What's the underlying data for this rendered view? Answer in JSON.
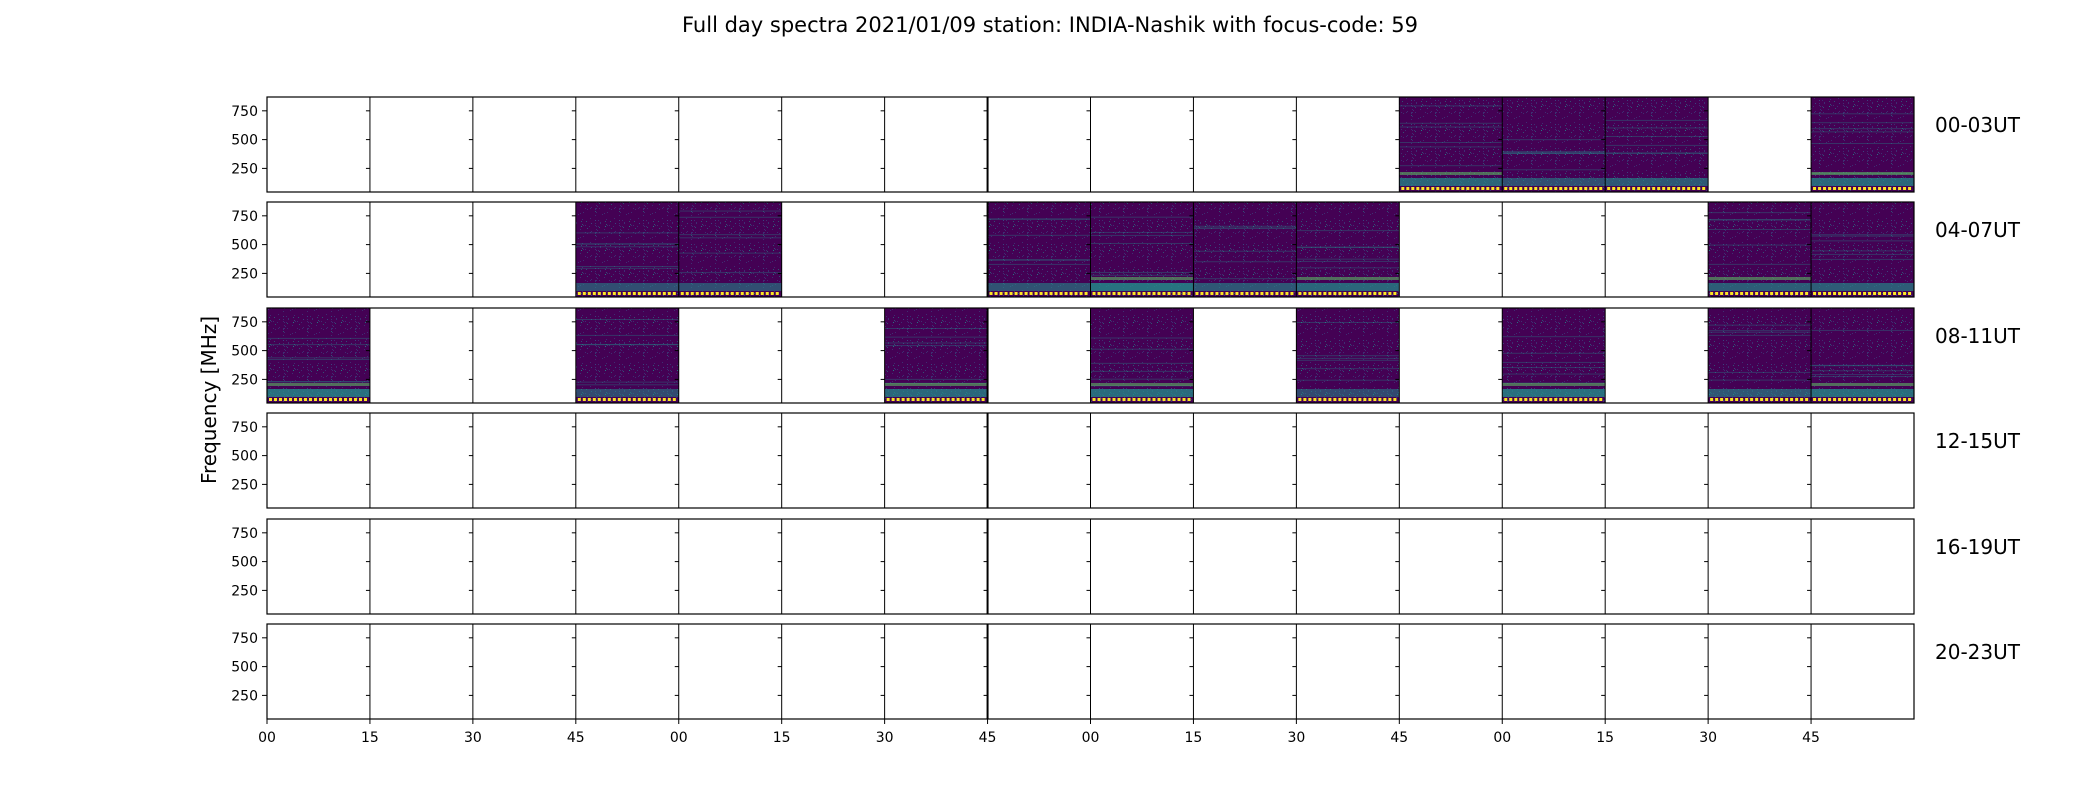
{
  "chart_data": {
    "type": "heatmap",
    "title": "Full day spectra 2021/01/09 station: INDIA-Nashik with focus-code: 59",
    "xlabel": "",
    "ylabel": "Frequency [MHz]",
    "ylim": [
      45,
      870
    ],
    "yticks": [
      "750",
      "500",
      "250"
    ],
    "ytick_values": [
      750,
      500,
      250
    ],
    "xtick_labels": [
      "00",
      "15",
      "30",
      "45",
      "00",
      "15",
      "30",
      "45",
      "00",
      "15",
      "30",
      "45",
      "00",
      "15",
      "30",
      "45"
    ],
    "rows": [
      {
        "label": "00-03UT",
        "filled": [
          0,
          0,
          0,
          0,
          0,
          0,
          0,
          0,
          0,
          0,
          0,
          1,
          1,
          1,
          0,
          1
        ]
      },
      {
        "label": "04-07UT",
        "filled": [
          0,
          0,
          0,
          1,
          1,
          0,
          0,
          1,
          1,
          1,
          1,
          0,
          0,
          0,
          1,
          1
        ]
      },
      {
        "label": "08-11UT",
        "filled": [
          1,
          0,
          0,
          1,
          0,
          0,
          1,
          0,
          1,
          0,
          1,
          0,
          1,
          0,
          1,
          1
        ]
      },
      {
        "label": "12-15UT",
        "filled": [
          0,
          0,
          0,
          0,
          0,
          0,
          0,
          0,
          0,
          0,
          0,
          0,
          0,
          0,
          0,
          0
        ]
      },
      {
        "label": "16-19UT",
        "filled": [
          0,
          0,
          0,
          0,
          0,
          0,
          0,
          0,
          0,
          0,
          0,
          0,
          0,
          0,
          0,
          0
        ]
      },
      {
        "label": "20-23UT",
        "filled": [
          0,
          0,
          0,
          0,
          0,
          0,
          0,
          0,
          0,
          0,
          0,
          0,
          0,
          0,
          0,
          0
        ]
      }
    ],
    "colors": {
      "background": "#440154",
      "mid": "#3b528b",
      "teal": "#21918c",
      "green": "#5ec962",
      "yellow": "#fde725"
    },
    "grid": false,
    "legend": "none"
  }
}
